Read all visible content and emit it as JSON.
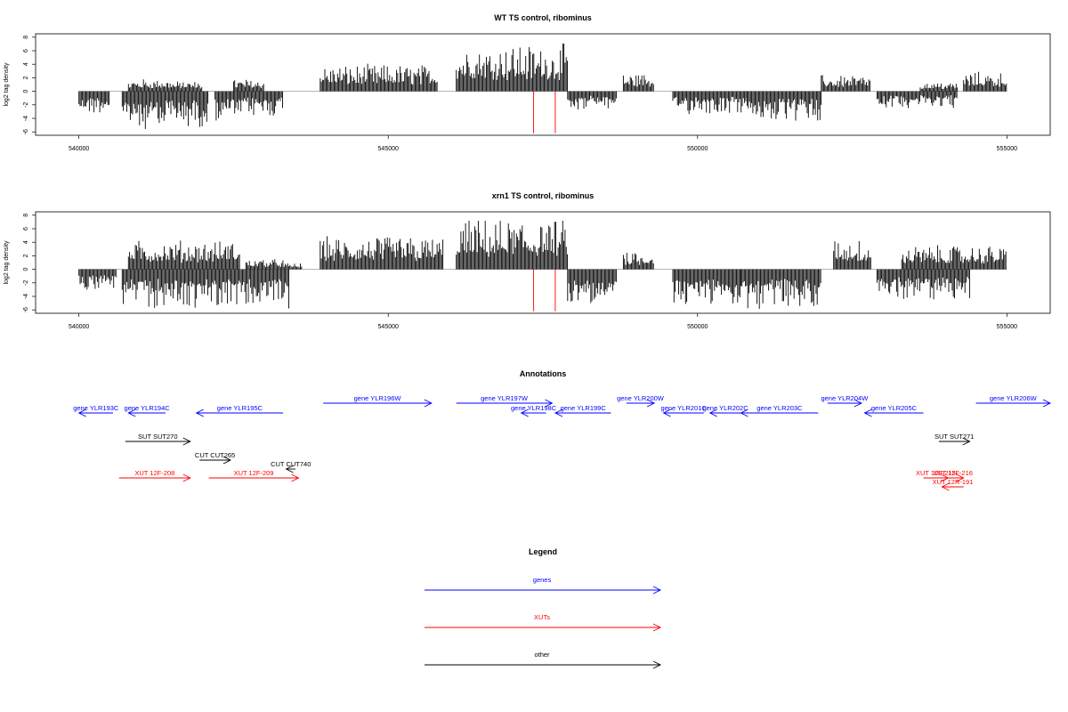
{
  "chart_data": [
    {
      "type": "bar",
      "title": "WT TS control, ribominus",
      "ylabel": "log2 tag density",
      "xlim": [
        539300,
        555700
      ],
      "ylim": [
        -6.5,
        8.5
      ],
      "xticks": [
        540000,
        545000,
        550000,
        555000
      ],
      "yticks": [
        -6,
        -4,
        -2,
        0,
        2,
        4,
        6,
        8
      ],
      "vlines": [
        547350,
        547700
      ],
      "vline_color": "#ff0000",
      "series": [
        {
          "segments": [
            {
              "x": [
                540000,
                540500
              ],
              "v": -2.2
            },
            {
              "x": [
                540700,
                541300
              ],
              "v": -3.8
            },
            {
              "x": [
                540800,
                541500
              ],
              "v": 1.2
            },
            {
              "x": [
                541500,
                542000
              ],
              "v": 1.0
            },
            {
              "x": [
                541300,
                542100
              ],
              "v": -3.5
            },
            {
              "x": [
                542200,
                542600
              ],
              "v": -3.0
            },
            {
              "x": [
                542600,
                543300
              ],
              "v": -2.5
            },
            {
              "x": [
                542500,
                543000
              ],
              "v": 1.2
            },
            {
              "x": [
                543900,
                545800
              ],
              "v": 2.6
            },
            {
              "x": [
                546100,
                547900
              ],
              "v": 4.6
            },
            {
              "x": [
                547900,
                548700
              ],
              "v": -1.8
            },
            {
              "x": [
                548800,
                549300
              ],
              "v": 1.8
            },
            {
              "x": [
                549600,
                550800
              ],
              "v": -2.2
            },
            {
              "x": [
                550800,
                552000
              ],
              "v": -3.0
            },
            {
              "x": [
                552000,
                552800
              ],
              "v": 1.6
            },
            {
              "x": [
                552900,
                554200
              ],
              "v": -1.6
            },
            {
              "x": [
                553600,
                554200
              ],
              "v": 0.9
            },
            {
              "x": [
                554300,
                555000
              ],
              "v": 1.9
            }
          ]
        }
      ]
    },
    {
      "type": "bar",
      "title": "xrn1 TS control, ribominus",
      "ylabel": "log2 tag density",
      "xlim": [
        539300,
        555700
      ],
      "ylim": [
        -6.5,
        8.5
      ],
      "xticks": [
        540000,
        545000,
        550000,
        555000
      ],
      "yticks": [
        -6,
        -4,
        -2,
        0,
        2,
        4,
        6,
        8
      ],
      "vlines": [
        547350,
        547700
      ],
      "vline_color": "#ff0000",
      "series": [
        {
          "segments": [
            {
              "x": [
                540000,
                540600
              ],
              "v": -2.0
            },
            {
              "x": [
                540700,
                543400
              ],
              "v": -3.8
            },
            {
              "x": [
                540800,
                542600
              ],
              "v": 2.8
            },
            {
              "x": [
                542700,
                543300
              ],
              "v": 1.0
            },
            {
              "x": [
                543300,
                543600
              ],
              "v": 0.6
            },
            {
              "x": [
                543900,
                545900
              ],
              "v": 3.2
            },
            {
              "x": [
                546100,
                547900
              ],
              "v": 4.8
            },
            {
              "x": [
                547900,
                548700
              ],
              "v": -3.6
            },
            {
              "x": [
                548800,
                549300
              ],
              "v": 1.8
            },
            {
              "x": [
                549600,
                550700
              ],
              "v": -3.6
            },
            {
              "x": [
                550700,
                552000
              ],
              "v": -4.0
            },
            {
              "x": [
                552200,
                552800
              ],
              "v": 3.0
            },
            {
              "x": [
                552900,
                554400
              ],
              "v": -3.0
            },
            {
              "x": [
                553300,
                555000
              ],
              "v": 2.3
            }
          ]
        }
      ]
    }
  ],
  "annotations": {
    "title": "Annotations",
    "items": [
      {
        "label": "gene YLR193C",
        "type": "genes",
        "x1": 540000,
        "x2": 540550,
        "dir": "left",
        "row": 1
      },
      {
        "label": "gene YLR194C",
        "type": "genes",
        "x1": 540800,
        "x2": 541400,
        "dir": "left",
        "row": 1
      },
      {
        "label": "gene YLR195C",
        "type": "genes",
        "x1": 541900,
        "x2": 543300,
        "dir": "left",
        "row": 1
      },
      {
        "label": "gene YLR196W",
        "type": "genes",
        "x1": 543950,
        "x2": 545700,
        "dir": "right",
        "row": 0
      },
      {
        "label": "gene YLR197W",
        "type": "genes",
        "x1": 546100,
        "x2": 547650,
        "dir": "right",
        "row": 0
      },
      {
        "label": "gene YLR198C",
        "type": "genes",
        "x1": 547150,
        "x2": 547550,
        "dir": "left",
        "row": 1
      },
      {
        "label": "gene YLR199C",
        "type": "genes",
        "x1": 547700,
        "x2": 548600,
        "dir": "left",
        "row": 1
      },
      {
        "label": "gene YLR200W",
        "type": "genes",
        "x1": 548850,
        "x2": 549300,
        "dir": "right",
        "row": 0
      },
      {
        "label": "gene YLR201C",
        "type": "genes",
        "x1": 549450,
        "x2": 550100,
        "dir": "left",
        "row": 1
      },
      {
        "label": "gene YLR202C",
        "type": "genes",
        "x1": 550200,
        "x2": 550700,
        "dir": "left",
        "row": 1
      },
      {
        "label": "gene YLR203C",
        "type": "genes",
        "x1": 550700,
        "x2": 551950,
        "dir": "left",
        "row": 1
      },
      {
        "label": "gene YLR204W",
        "type": "genes",
        "x1": 552100,
        "x2": 552650,
        "dir": "right",
        "row": 0
      },
      {
        "label": "gene YLR205C",
        "type": "genes",
        "x1": 552700,
        "x2": 553650,
        "dir": "left",
        "row": 1
      },
      {
        "label": "gene YLR206W",
        "type": "genes",
        "x1": 554500,
        "x2": 555700,
        "dir": "right",
        "row": 0
      },
      {
        "label": "SUT SUT270",
        "type": "other",
        "x1": 540750,
        "x2": 541800,
        "dir": "right",
        "row": 2
      },
      {
        "label": "SUT SUT271",
        "type": "other",
        "x1": 553900,
        "x2": 554400,
        "dir": "right",
        "row": 2
      },
      {
        "label": "CUT CUT265",
        "type": "other",
        "x1": 541950,
        "x2": 542450,
        "dir": "right",
        "row": 3
      },
      {
        "label": "CUT CUT740",
        "type": "other",
        "x1": 543350,
        "x2": 543500,
        "dir": "left",
        "row": 4
      },
      {
        "label": "XUT 12F-208",
        "type": "XUTs",
        "x1": 540650,
        "x2": 541800,
        "dir": "right",
        "row": 5
      },
      {
        "label": "XUT 12F-209",
        "type": "XUTs",
        "x1": 542100,
        "x2": 543550,
        "dir": "right",
        "row": 5
      },
      {
        "label": "XUT 12F-215",
        "type": "XUTs",
        "x1": 553650,
        "x2": 554050,
        "dir": "right",
        "row": 5
      },
      {
        "label": "XUT 12F-216",
        "type": "XUTs",
        "x1": 553950,
        "x2": 554300,
        "dir": "right",
        "row": 5
      },
      {
        "label": "XUT 12R-191",
        "type": "XUTs",
        "x1": 553950,
        "x2": 554300,
        "dir": "left",
        "row": 6
      }
    ]
  },
  "legend": {
    "title": "Legend",
    "entries": [
      {
        "label": "genes",
        "color": "#0000ff"
      },
      {
        "label": "XUTs",
        "color": "#ff0000"
      },
      {
        "label": "other",
        "color": "#000000"
      }
    ]
  },
  "colors": {
    "genes": "#0000ff",
    "XUTs": "#ff0000",
    "other": "#000000"
  }
}
